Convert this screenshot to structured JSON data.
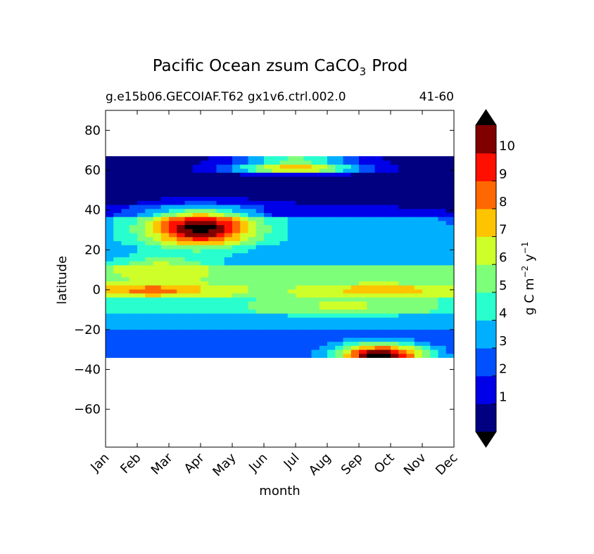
{
  "chart_data": {
    "type": "heatmap",
    "title": "Pacific Ocean zsum CaCO",
    "title_subscript": "3",
    "title_suffix": "Prod",
    "subtitle_left": "g.e15b06.GECOIAF.T62 gx1v6.ctrl.002.0",
    "subtitle_right": "41-60",
    "xlabel": "month",
    "ylabel": "latitude",
    "x_ticks": [
      "Jan",
      "Feb",
      "Mar",
      "Apr",
      "May",
      "Jun",
      "Jul",
      "Aug",
      "Sep",
      "Oct",
      "Nov",
      "Dec"
    ],
    "y_ticks": [
      80,
      60,
      40,
      20,
      0,
      -20,
      -40,
      -60
    ],
    "y_tick_labels": [
      "80",
      "60",
      "40",
      "20",
      "0",
      "−20",
      "−40",
      "−60"
    ],
    "xlim": [
      0,
      11
    ],
    "ylim": [
      -79,
      90
    ],
    "data_lat_range": [
      -34,
      67
    ],
    "colorbar": {
      "label": "g C m⁻² y⁻¹",
      "label_parts": [
        "g C m",
        "−2",
        " y",
        "−1"
      ],
      "levels": [
        0,
        1,
        2,
        3,
        4,
        5,
        6,
        7,
        8,
        9,
        10,
        11
      ],
      "tick_values": [
        1,
        2,
        3,
        4,
        5,
        6,
        7,
        8,
        9,
        10
      ],
      "tick_labels": [
        "1",
        "2",
        "3",
        "4",
        "5",
        "6",
        "7",
        "8",
        "9",
        "10"
      ],
      "colors": [
        "#000080",
        "#0000e8",
        "#0050ff",
        "#00b0ff",
        "#29ffce",
        "#7dff7a",
        "#ceff29",
        "#ffc400",
        "#ff6800",
        "#ff0f00",
        "#800000"
      ],
      "extend_low_color": "#000000",
      "extend_high_color": "#000000"
    },
    "features": [
      {
        "lat": 31,
        "month": 3.0,
        "lat_width": 9,
        "month_width": 1.6,
        "peak": 11.5
      },
      {
        "lat": 0,
        "month": 1.5,
        "lat_width": 3,
        "month_width": 1.8,
        "peak": 8.6
      },
      {
        "lat": 0,
        "month": 8.7,
        "lat_width": 3,
        "month_width": 1.8,
        "peak": 7.8
      },
      {
        "lat": -33,
        "month": 8.7,
        "lat_width": 6,
        "month_width": 1.4,
        "peak": 11.5
      },
      {
        "lat": 10,
        "month": 1.8,
        "lat_width": 7,
        "month_width": 1.6,
        "peak": 6.8
      },
      {
        "lat": 61,
        "month": 6.0,
        "lat_width": 2,
        "month_width": 2.0,
        "peak": 9.0
      },
      {
        "lat": 65,
        "month": 6.0,
        "lat_width": 1.5,
        "month_width": 1.8,
        "peak": 7.5
      },
      {
        "lat": 20,
        "month": 6.5,
        "lat_width": 14,
        "month_width": 5.0,
        "peak": 3.8
      },
      {
        "lat": -8,
        "month": 7.5,
        "lat_width": 6,
        "month_width": 2.5,
        "peak": 6.2
      }
    ]
  }
}
